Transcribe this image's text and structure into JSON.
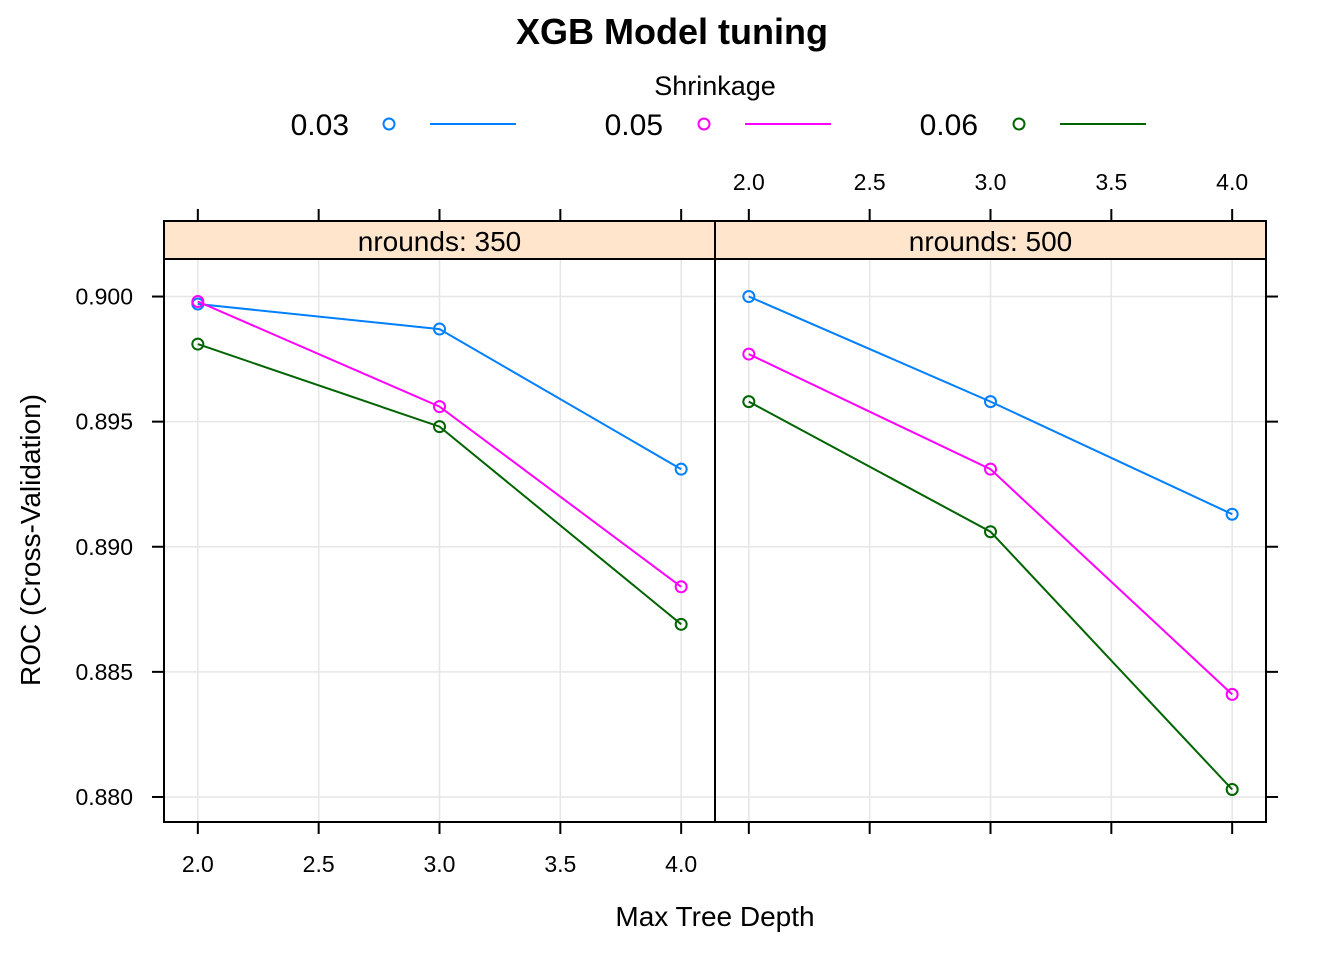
{
  "chart_data": {
    "type": "line",
    "title": "XGB Model tuning",
    "xlabel": "Max Tree Depth",
    "ylabel": "ROC (Cross-Validation)",
    "legend": {
      "title": "Shrinkage",
      "placement": "top",
      "entries": [
        {
          "label": "0.03",
          "color": "#0080ff"
        },
        {
          "label": "0.05",
          "color": "#ff00ff"
        },
        {
          "label": "0.06",
          "color": "#006400"
        }
      ]
    },
    "xlim": [
      1.86,
      4.14
    ],
    "ylim": [
      0.879,
      0.9015
    ],
    "x_ticks": [
      "2.0",
      "2.5",
      "3.0",
      "3.5",
      "4.0"
    ],
    "y_ticks": [
      "0.880",
      "0.885",
      "0.890",
      "0.895",
      "0.900"
    ],
    "grid": true,
    "panels": [
      {
        "strip": "nrounds: 350",
        "x": [
          2,
          3,
          4
        ],
        "series": [
          {
            "name": "0.03",
            "values": [
              0.8997,
              0.8987,
              0.8931
            ]
          },
          {
            "name": "0.05",
            "values": [
              0.8998,
              0.8956,
              0.8884
            ]
          },
          {
            "name": "0.06",
            "values": [
              0.8981,
              0.8948,
              0.8869
            ]
          }
        ]
      },
      {
        "strip": "nrounds: 500",
        "x": [
          2,
          3,
          4
        ],
        "series": [
          {
            "name": "0.03",
            "values": [
              0.9,
              0.8958,
              0.8913
            ]
          },
          {
            "name": "0.05",
            "values": [
              0.8977,
              0.8931,
              0.8841
            ]
          },
          {
            "name": "0.06",
            "values": [
              0.8958,
              0.8906,
              0.8803
            ]
          }
        ]
      }
    ]
  },
  "colors": {
    "strip_background": "#ffe5cc",
    "grid": "#e6e6e6",
    "frame": "#000000"
  }
}
